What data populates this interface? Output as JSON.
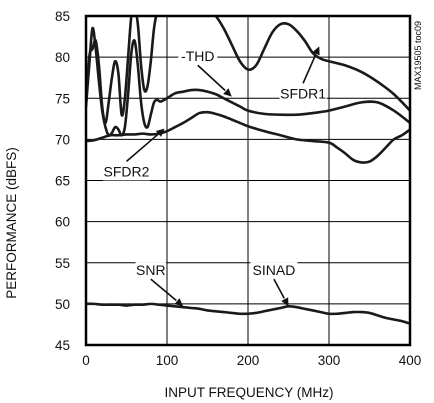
{
  "chart_data": {
    "type": "line",
    "title": "",
    "xlabel": "INPUT FREQUENCY (MHz)",
    "ylabel": "PERFORMANCE (dBFS)",
    "xlim": [
      0,
      400
    ],
    "ylim": [
      45,
      85
    ],
    "xticks": [
      0,
      100,
      200,
      300,
      400
    ],
    "yticks": [
      45,
      50,
      55,
      60,
      65,
      70,
      75,
      80,
      85
    ],
    "grid": true,
    "legend": "none",
    "side_code": "MAX19505 toc09",
    "series": [
      {
        "name": "SFDR1",
        "x": [
          0,
          4,
          8,
          12,
          16,
          20,
          24,
          28,
          32,
          36,
          40,
          44,
          48,
          52,
          56,
          60,
          64,
          68,
          72,
          76,
          80,
          84,
          88,
          92,
          100,
          110,
          120,
          130,
          140,
          150,
          160,
          170,
          180,
          190,
          200,
          210,
          220,
          230,
          240,
          250,
          260,
          270,
          280,
          290,
          300,
          320,
          340,
          360,
          380,
          400
        ],
        "y": [
          74,
          80,
          81,
          82,
          79,
          74,
          72,
          74.5,
          77.5,
          79.5,
          78,
          73,
          75,
          80,
          85,
          86,
          84,
          79,
          76,
          76.5,
          79.5,
          83.5,
          85.5,
          86,
          86,
          86,
          86,
          86,
          86,
          85.5,
          85,
          83.5,
          81.5,
          79.5,
          78.5,
          79,
          81,
          83,
          84,
          84,
          83.2,
          82,
          80.5,
          79.8,
          79.5,
          79,
          78.2,
          77,
          75.5,
          73.5
        ]
      },
      {
        "name": "-THD",
        "x": [
          0,
          4,
          8,
          12,
          16,
          20,
          24,
          28,
          32,
          36,
          40,
          44,
          48,
          52,
          56,
          60,
          64,
          68,
          72,
          76,
          80,
          84,
          88,
          92,
          100,
          110,
          120,
          130,
          140,
          150,
          160,
          170,
          180,
          190,
          200,
          220,
          240,
          260,
          280,
          300,
          320,
          340,
          360,
          380,
          400
        ],
        "y": [
          74,
          79,
          83.5,
          81,
          77,
          73.5,
          71.5,
          70.5,
          70.8,
          71.5,
          71.2,
          70.5,
          71.5,
          75.5,
          80.5,
          82,
          79,
          74.5,
          72,
          71.5,
          73,
          74.5,
          74.8,
          74.6,
          75,
          75.6,
          75.8,
          76,
          76,
          75.8,
          75.5,
          75,
          74.5,
          74,
          73.5,
          73.1,
          73,
          73,
          73.2,
          73.5,
          74,
          74.5,
          74.5,
          73.5,
          72
        ]
      },
      {
        "name": "SFDR2",
        "x": [
          0,
          10,
          20,
          30,
          40,
          50,
          60,
          70,
          80,
          90,
          100,
          110,
          120,
          130,
          140,
          150,
          160,
          170,
          180,
          190,
          200,
          220,
          240,
          260,
          280,
          300,
          310,
          320,
          330,
          340,
          350,
          360,
          370,
          380,
          390,
          400
        ],
        "y": [
          69.8,
          69.9,
          70.2,
          70.5,
          70.5,
          70.6,
          70.6,
          70.7,
          70.6,
          70.7,
          71,
          71.5,
          72,
          72.6,
          73.2,
          73.3,
          73.1,
          72.8,
          72.4,
          72,
          71.6,
          71,
          70.5,
          70,
          69.8,
          69.6,
          69,
          68.3,
          67.5,
          67.2,
          67.3,
          68,
          69,
          70,
          70.5,
          71.2
        ]
      },
      {
        "name": "SNR",
        "x": [
          0,
          10,
          20,
          30,
          40,
          50,
          60,
          70,
          80,
          90,
          100,
          110,
          120,
          130,
          140,
          150,
          160,
          170,
          180,
          190,
          200,
          210,
          220,
          230,
          240,
          250,
          260,
          270,
          280,
          290,
          300,
          310,
          320,
          330,
          340,
          350,
          360,
          370,
          380,
          390,
          400
        ],
        "y": [
          50,
          50,
          49.9,
          49.9,
          49.9,
          49.8,
          49.9,
          49.9,
          50,
          49.9,
          49.8,
          49.7,
          49.6,
          49.5,
          49.4,
          49.2,
          49.1,
          49,
          48.9,
          48.8,
          48.8,
          48.9,
          49.1,
          49.3,
          49.5,
          49.7,
          49.6,
          49.4,
          49.2,
          49,
          48.8,
          48.8,
          48.9,
          49,
          49,
          48.9,
          48.6,
          48.3,
          48.1,
          47.9,
          47.6
        ]
      }
    ],
    "annotations": [
      {
        "text": "-THD",
        "x": 138,
        "y": 79.5,
        "to_x": 180,
        "to_y": 75.2
      },
      {
        "text": "SFDR1",
        "x": 268,
        "y": 75,
        "to_x": 288,
        "to_y": 81.3
      },
      {
        "text": "SFDR2",
        "x": 50,
        "y": 65.5,
        "to_x": 97,
        "to_y": 71.3
      },
      {
        "text": "SNR",
        "x": 80,
        "y": 53.5,
        "to_x": 120,
        "to_y": 49.7
      },
      {
        "text": "SINAD",
        "x": 232,
        "y": 53.5,
        "to_x": 250,
        "to_y": 49.7
      }
    ]
  }
}
